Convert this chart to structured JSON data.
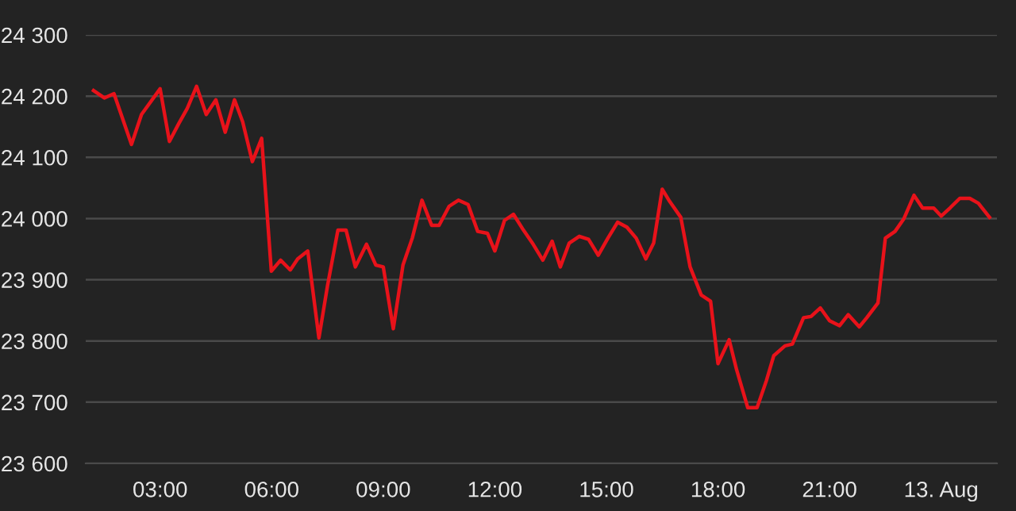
{
  "chart_data": {
    "type": "line",
    "x": [
      1.21,
      1.5,
      1.76,
      2.23,
      2.5,
      3.0,
      3.25,
      3.5,
      3.73,
      3.98,
      4.24,
      4.5,
      4.75,
      5.0,
      5.22,
      5.48,
      5.73,
      5.99,
      6.24,
      6.5,
      6.7,
      6.97,
      7.27,
      7.5,
      7.78,
      8.0,
      8.25,
      8.55,
      8.8,
      9.0,
      9.27,
      9.53,
      9.78,
      10.04,
      10.3,
      10.5,
      10.77,
      11.02,
      11.28,
      11.54,
      11.8,
      12.0,
      12.26,
      12.5,
      12.77,
      13.03,
      13.29,
      13.54,
      13.76,
      14.0,
      14.27,
      14.52,
      14.78,
      15.04,
      15.3,
      15.55,
      15.8,
      16.06,
      16.27,
      16.5,
      16.7,
      17.0,
      17.25,
      17.55,
      17.8,
      18.0,
      18.3,
      18.5,
      18.8,
      19.05,
      19.3,
      19.5,
      19.8,
      20.0,
      20.3,
      20.5,
      20.75,
      21.0,
      21.27,
      21.5,
      21.8,
      22.0,
      22.3,
      22.5,
      22.76,
      23.0,
      23.27,
      23.5,
      23.8,
      24.0,
      24.25,
      24.5,
      24.77,
      25.0,
      25.3
    ],
    "series": [
      {
        "color": "#e8121a",
        "values": [
          24209,
          24197,
          24204,
          24121,
          24170,
          24212,
          24126,
          24155,
          24180,
          24216,
          24170,
          24194,
          24141,
          24194,
          24158,
          24093,
          24131,
          23914,
          23932,
          23916,
          23934,
          23947,
          23805,
          23890,
          23981,
          23981,
          23921,
          23958,
          23924,
          23921,
          23820,
          23924,
          23968,
          24030,
          23989,
          23989,
          24020,
          24030,
          24023,
          23979,
          23976,
          23947,
          23997,
          24007,
          23981,
          23958,
          23932,
          23963,
          23921,
          23960,
          23971,
          23966,
          23940,
          23968,
          23994,
          23986,
          23968,
          23934,
          23960,
          24048,
          24028,
          24002,
          23921,
          23875,
          23865,
          23763,
          23802,
          23753,
          23691,
          23691,
          23735,
          23776,
          23792,
          23795,
          23838,
          23840,
          23854,
          23833,
          23825,
          23843,
          23823,
          23838,
          23862,
          23968,
          23979,
          24000,
          24038,
          24017,
          24017,
          24004,
          24018,
          24033,
          24033,
          24025,
          24002
        ]
      }
    ],
    "xlim": [
      1.0,
      25.5
    ],
    "xticks": [
      {
        "value": 3,
        "label": "03:00"
      },
      {
        "value": 6,
        "label": "06:00"
      },
      {
        "value": 9,
        "label": "09:00"
      },
      {
        "value": 12,
        "label": "12:00"
      },
      {
        "value": 15,
        "label": "15:00"
      },
      {
        "value": 18,
        "label": "18:00"
      },
      {
        "value": 21,
        "label": "21:00"
      },
      {
        "value": 24,
        "label": "13. Aug"
      }
    ],
    "ylim": [
      23600,
      24300
    ],
    "yticks": [
      {
        "value": 23600,
        "label": "23 600"
      },
      {
        "value": 23700,
        "label": "23 700"
      },
      {
        "value": 23800,
        "label": "23 800"
      },
      {
        "value": 23900,
        "label": "23 900"
      },
      {
        "value": 24000,
        "label": "24 000"
      },
      {
        "value": 24100,
        "label": "24 100"
      },
      {
        "value": 24200,
        "label": "24 200"
      },
      {
        "value": 24300,
        "label": "24 300"
      }
    ],
    "grid": "y",
    "marker": "none",
    "line_style": "solid"
  }
}
